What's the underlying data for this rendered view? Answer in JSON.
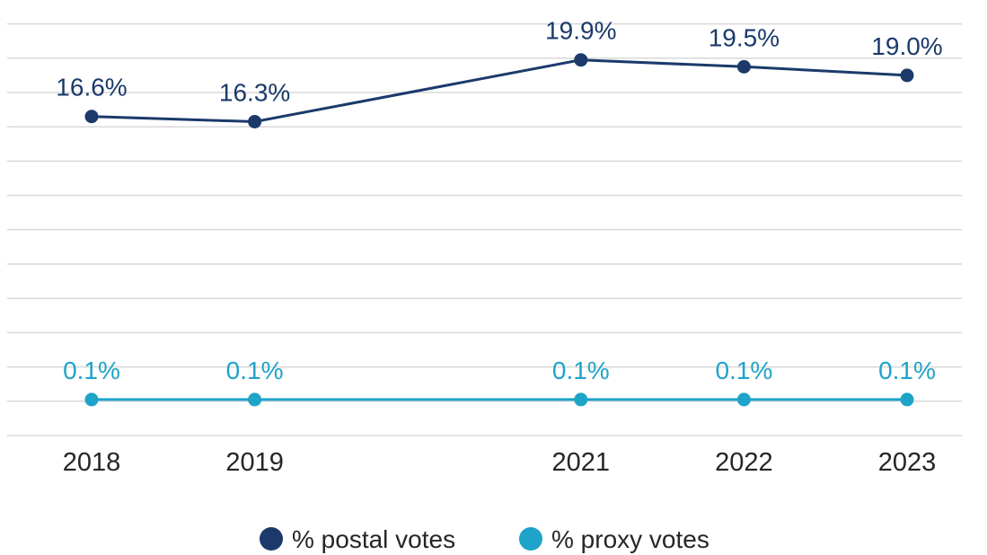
{
  "chart_data": {
    "type": "line",
    "title": "",
    "xlabel": "",
    "ylabel": "",
    "categories": [
      "2018",
      "2019",
      "2021",
      "2022",
      "2023"
    ],
    "x": [
      2018,
      2019,
      2021,
      2022,
      2023
    ],
    "series": [
      {
        "name": "% postal votes",
        "values": [
          16.6,
          16.3,
          19.9,
          19.5,
          19.0
        ],
        "labels": [
          "16.6%",
          "16.3%",
          "19.9%",
          "19.5%",
          "19.0%"
        ],
        "color": "#1b3a6b"
      },
      {
        "name": "% proxy votes",
        "values": [
          0.1,
          0.1,
          0.1,
          0.1,
          0.1
        ],
        "labels": [
          "0.1%",
          "0.1%",
          "0.1%",
          "0.1%",
          "0.1%"
        ],
        "color": "#1ea3c9"
      }
    ],
    "ylim": [
      -2,
      22
    ],
    "grid": true,
    "legend": "bottom-center"
  }
}
